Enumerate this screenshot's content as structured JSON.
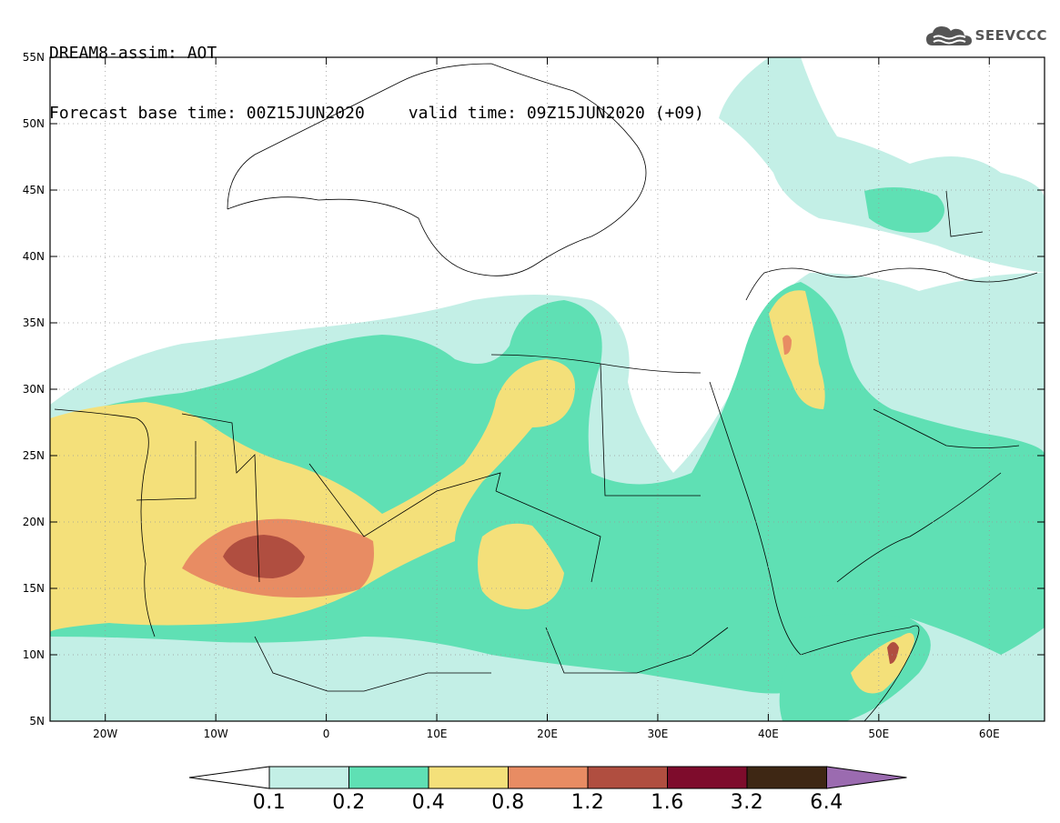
{
  "header": {
    "line1": "DREAM8-assim: AOT",
    "base_time": "Forecast base time: 00Z15JUN2020",
    "valid_time": "valid time: 09Z15JUN2020 (+09)"
  },
  "logo": {
    "text": "SEEVCCC",
    "icon": "cloud-icon"
  },
  "map": {
    "lon_range": [
      -25,
      65
    ],
    "lat_range": [
      5,
      55
    ],
    "lon_ticks": [
      {
        "value": -20,
        "label": "20W"
      },
      {
        "value": -10,
        "label": "10W"
      },
      {
        "value": 0,
        "label": "0"
      },
      {
        "value": 10,
        "label": "10E"
      },
      {
        "value": 20,
        "label": "20E"
      },
      {
        "value": 30,
        "label": "30E"
      },
      {
        "value": 40,
        "label": "40E"
      },
      {
        "value": 50,
        "label": "50E"
      },
      {
        "value": 60,
        "label": "60E"
      }
    ],
    "lat_ticks": [
      {
        "value": 5,
        "label": "5N"
      },
      {
        "value": 10,
        "label": "10N"
      },
      {
        "value": 15,
        "label": "15N"
      },
      {
        "value": 20,
        "label": "20N"
      },
      {
        "value": 25,
        "label": "25N"
      },
      {
        "value": 30,
        "label": "30N"
      },
      {
        "value": 35,
        "label": "35N"
      },
      {
        "value": 40,
        "label": "40N"
      },
      {
        "value": 45,
        "label": "45N"
      },
      {
        "value": 50,
        "label": "50N"
      },
      {
        "value": 55,
        "label": "55N"
      }
    ],
    "grid": true
  },
  "colorbar": {
    "labels": [
      "0.1",
      "0.2",
      "0.4",
      "0.8",
      "1.2",
      "1.6",
      "3.2",
      "6.4"
    ],
    "colors": {
      "under": "#ffffff",
      "bins": [
        "#c3efe6",
        "#5fe0b4",
        "#f4e07a",
        "#e88c63",
        "#b04e40",
        "#7e0c2c",
        "#3e2714"
      ],
      "over": "#9b6bb0"
    }
  }
}
